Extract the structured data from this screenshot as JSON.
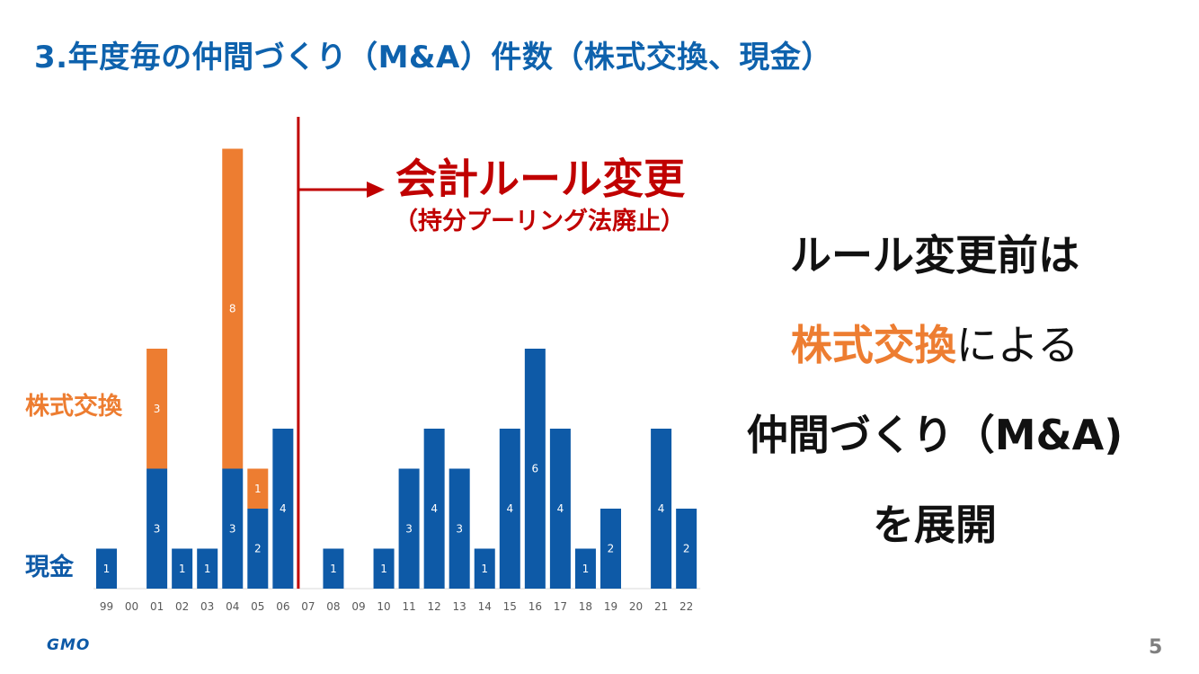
{
  "slide": {
    "title": "3.年度毎の仲間づくり（M&A）件数（株式交換、現金）",
    "legend_stock": "株式交換",
    "legend_cash": "現金",
    "rule_change_title": "会計ルール変更",
    "rule_change_sub": "（持分プーリング法廃止）",
    "message": {
      "line1": "ルール変更前は",
      "line2_accent": "株式交換",
      "line2_rest": "による",
      "line3": "仲間づくり（M&A)",
      "line4": "を展開"
    },
    "logo": "GMO",
    "page_number": "5"
  },
  "colors": {
    "cash": "#0e5aa7",
    "stock": "#ed7d31",
    "title": "#0e62ad",
    "rule_line": "#c00000"
  },
  "chart_data": {
    "type": "bar",
    "stacked": true,
    "categories": [
      "99",
      "00",
      "01",
      "02",
      "03",
      "04",
      "05",
      "06",
      "07",
      "08",
      "09",
      "10",
      "11",
      "12",
      "13",
      "14",
      "15",
      "16",
      "17",
      "18",
      "19",
      "20",
      "21",
      "22"
    ],
    "series": [
      {
        "name": "現金",
        "values": [
          1,
          0,
          3,
          1,
          1,
          3,
          2,
          4,
          0,
          1,
          0,
          1,
          3,
          4,
          3,
          1,
          4,
          6,
          4,
          1,
          2,
          0,
          4,
          2
        ]
      },
      {
        "name": "株式交換",
        "values": [
          0,
          0,
          3,
          0,
          0,
          8,
          1,
          0,
          0,
          0,
          0,
          0,
          0,
          0,
          0,
          0,
          0,
          0,
          0,
          0,
          0,
          0,
          0,
          0
        ]
      }
    ],
    "ylim": [
      0,
      11
    ],
    "annotation": {
      "marker_between": [
        "06",
        "07"
      ],
      "arrow_direction": "right"
    }
  }
}
